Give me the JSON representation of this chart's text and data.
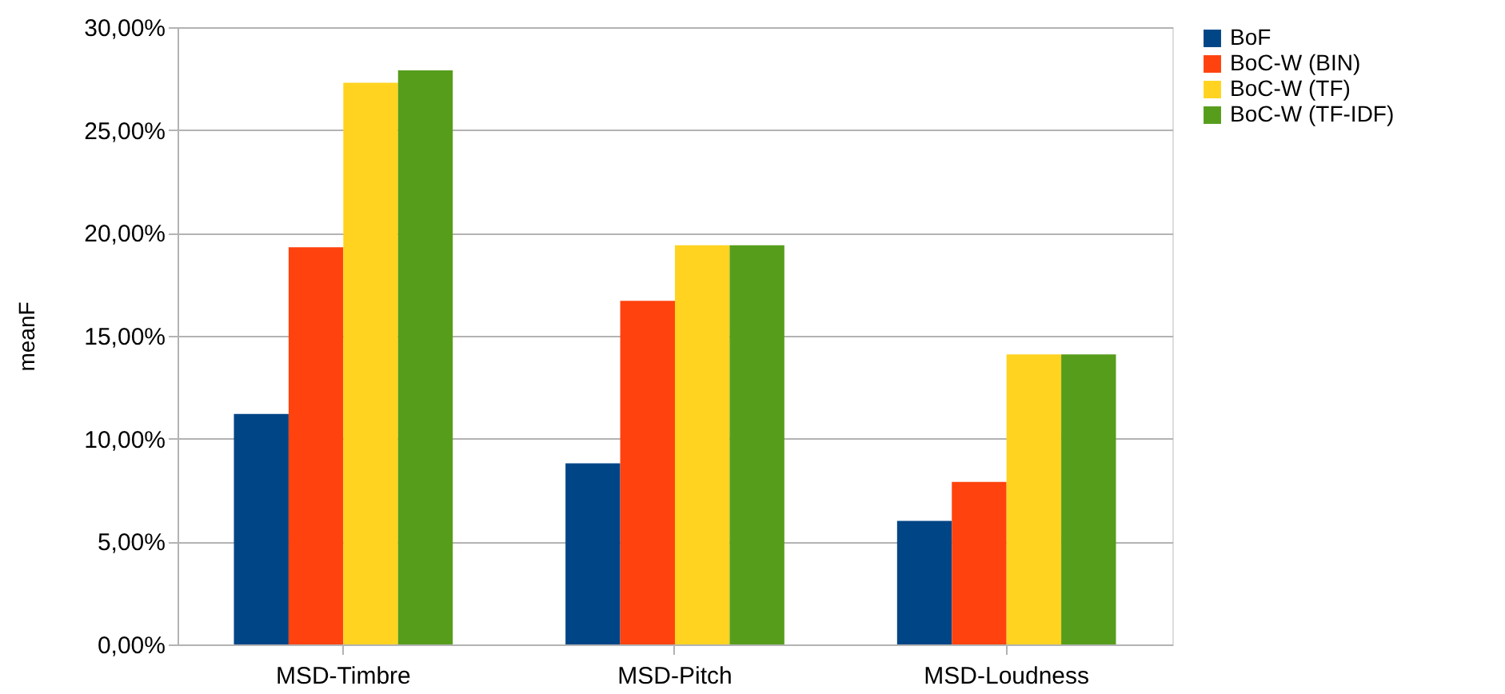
{
  "chart_data": {
    "type": "bar",
    "ylabel": "meanF",
    "categories": [
      "MSD-Timbre",
      "MSD-Pitch",
      "MSD-Loudness"
    ],
    "series": [
      {
        "name": "BoF",
        "color": "#004586",
        "values": [
          11.2,
          8.8,
          6.0
        ]
      },
      {
        "name": "BoC-W (BIN)",
        "color": "#ff420e",
        "values": [
          19.3,
          16.7,
          7.9
        ]
      },
      {
        "name": "BoC-W (TF)",
        "color": "#ffd320",
        "values": [
          27.3,
          19.4,
          14.1
        ]
      },
      {
        "name": "BoC-W (TF-IDF)",
        "color": "#579d1c",
        "values": [
          27.9,
          19.4,
          14.1
        ]
      }
    ],
    "ylim": [
      0,
      30
    ],
    "yticks": [
      {
        "value": 0,
        "label": "0,00%"
      },
      {
        "value": 5,
        "label": "5,00%"
      },
      {
        "value": 10,
        "label": "10,00%"
      },
      {
        "value": 15,
        "label": "15,00%"
      },
      {
        "value": 20,
        "label": "20,00%"
      },
      {
        "value": 25,
        "label": "25,00%"
      },
      {
        "value": 30,
        "label": "30,00%"
      }
    ],
    "grid": "y",
    "legend": "right"
  }
}
